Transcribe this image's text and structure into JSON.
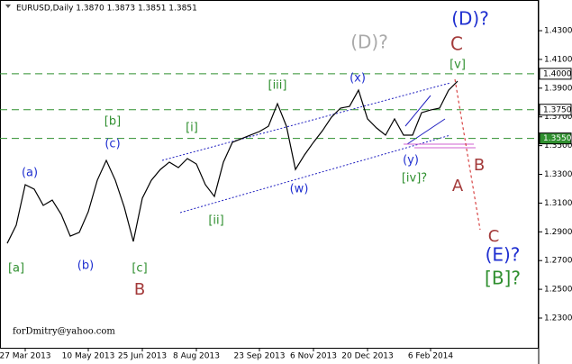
{
  "chart_data": {
    "type": "line",
    "title": "EURUSD,Daily 1.3870 1.3873 1.3851 1.3851",
    "watermark": "forDmitry@yahoo.com",
    "color": "#000000",
    "categories": [
      null,
      null,
      "27 Mar 2013",
      null,
      null,
      null,
      null,
      null,
      null,
      "10 May 2013",
      null,
      null,
      null,
      null,
      null,
      "25 Jun 2013",
      null,
      null,
      null,
      null,
      null,
      "8 Aug 2013",
      null,
      null,
      null,
      null,
      null,
      null,
      "23 Sep 2013",
      null,
      null,
      null,
      null,
      null,
      "6 Nov 2013",
      null,
      null,
      null,
      null,
      null,
      "20 Dec 2013",
      null,
      null,
      null,
      null,
      null,
      null,
      "6 Feb 2014",
      null,
      null,
      null
    ],
    "values": [
      1.282,
      1.2946,
      1.3228,
      1.3197,
      1.3084,
      1.3121,
      1.3021,
      1.287,
      1.2896,
      1.304,
      1.3259,
      1.3397,
      1.3259,
      1.3071,
      1.2833,
      1.3134,
      1.3259,
      1.3334,
      1.3385,
      1.3347,
      1.341,
      1.3372,
      1.3228,
      1.3146,
      1.3385,
      1.3523,
      1.3548,
      1.3573,
      1.3598,
      1.3635,
      1.3792,
      1.3635,
      1.3334,
      1.3435,
      1.3523,
      1.3604,
      1.3698,
      1.3761,
      1.3773,
      1.3886,
      1.3686,
      1.3623,
      1.3573,
      1.3686,
      1.3573,
      1.3573,
      1.3729,
      1.3748,
      1.3761,
      1.3886,
      1.3949
    ],
    "ylim": [
      1.2093,
      1.4501
    ],
    "yticks": [
      {
        "value": 1.43,
        "label": "1.4300"
      },
      {
        "value": 1.41,
        "label": "1.4100"
      },
      {
        "value": 1.39,
        "label": "1.3900"
      },
      {
        "value": 1.37,
        "label": "1.3700"
      },
      {
        "value": 1.35,
        "label": "1.3500"
      },
      {
        "value": 1.33,
        "label": "1.3300"
      },
      {
        "value": 1.31,
        "label": "1.3100"
      },
      {
        "value": 1.29,
        "label": "1.2900"
      },
      {
        "value": 1.27,
        "label": "1.2700"
      },
      {
        "value": 1.25,
        "label": "1.2500"
      },
      {
        "value": 1.23,
        "label": "1.2300"
      }
    ],
    "levels": [
      {
        "value": 1.4,
        "label": "1.4000"
      },
      {
        "value": 1.375,
        "label": "1.3750"
      },
      {
        "value": 1.355,
        "label": "1.3550"
      }
    ],
    "level_color": "#2f8f2f",
    "annotations": [
      {
        "text": "(D)?",
        "color": "#1f2fd0"
      },
      {
        "text": "C",
        "color": "#a33a3a"
      },
      {
        "text": "[v]",
        "color": "#2f8f2f"
      },
      {
        "text": "(D)?",
        "color": "#aaaaaa"
      },
      {
        "text": "(x)",
        "color": "#1f2fd0"
      },
      {
        "text": "[iii]",
        "color": "#2f8f2f"
      },
      {
        "text": "[i]",
        "color": "#2f8f2f"
      },
      {
        "text": "[b]",
        "color": "#2f8f2f"
      },
      {
        "text": "(c)",
        "color": "#1f2fd0"
      },
      {
        "text": "(a)",
        "color": "#1f2fd0"
      },
      {
        "text": "[a]",
        "color": "#2f8f2f"
      },
      {
        "text": "(b)",
        "color": "#1f2fd0"
      },
      {
        "text": "[c]",
        "color": "#2f8f2f"
      },
      {
        "text": "B",
        "color": "#a33a3a"
      },
      {
        "text": "[ii]",
        "color": "#2f8f2f"
      },
      {
        "text": "(w)",
        "color": "#1f2fd0"
      },
      {
        "text": "(y)",
        "color": "#1f2fd0"
      },
      {
        "text": "[iv]?",
        "color": "#2f8f2f"
      },
      {
        "text": "B",
        "color": "#a33a3a"
      },
      {
        "text": "A",
        "color": "#a33a3a"
      },
      {
        "text": "C",
        "color": "#a33a3a"
      },
      {
        "text": "(E)?",
        "color": "#1f2fd0"
      },
      {
        "text": "[B]?",
        "color": "#2f8f2f"
      }
    ]
  }
}
